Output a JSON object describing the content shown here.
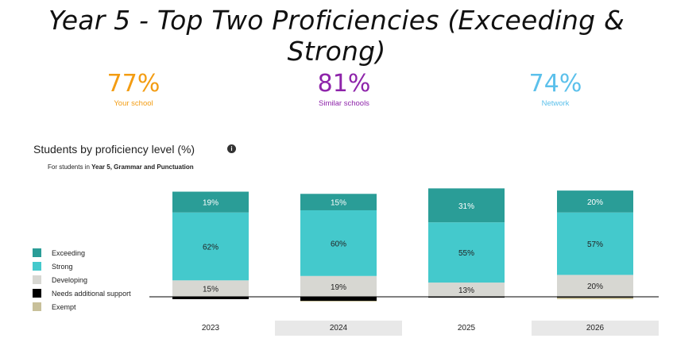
{
  "title": "Year 5 - Top Two Proficiencies (Exceeding & Strong)",
  "stats": [
    {
      "value": "77%",
      "label": "Your school",
      "color": "#f39c12"
    },
    {
      "value": "81%",
      "label": "Similar schools",
      "color": "#8e24aa"
    },
    {
      "value": "74%",
      "label": "Network",
      "color": "#5bc0eb"
    }
  ],
  "section": {
    "heading": "Students by proficiency level (%)",
    "info_icon": "info-icon",
    "caption_prefix": "For students in ",
    "caption_bold": "Year 5, Grammar and Punctuation"
  },
  "legend": [
    {
      "label": "Exceeding",
      "color": "#2a9d97"
    },
    {
      "label": "Strong",
      "color": "#44c9cc"
    },
    {
      "label": "Developing",
      "color": "#d7d7d2"
    },
    {
      "label": "Needs additional support",
      "color": "#000000"
    },
    {
      "label": "Exempt",
      "color": "#c8c09a"
    }
  ],
  "chart_data": {
    "type": "bar",
    "stacked": true,
    "categories": [
      "2023",
      "2024",
      "2025",
      "2026"
    ],
    "series": [
      {
        "name": "Exceeding",
        "values": [
          19,
          15,
          31,
          20
        ],
        "color": "#2a9d97"
      },
      {
        "name": "Strong",
        "values": [
          62,
          60,
          55,
          57
        ],
        "color": "#44c9cc"
      },
      {
        "name": "Developing",
        "values": [
          15,
          19,
          13,
          20
        ],
        "color": "#d7d7d2"
      },
      {
        "name": "Needs additional support",
        "values": [
          3,
          5,
          1,
          1
        ],
        "color": "#000000"
      },
      {
        "name": "Exempt",
        "values": [
          0,
          1,
          0,
          2
        ],
        "color": "#c8c09a"
      }
    ],
    "labels_shown_for": [
      "Exceeding",
      "Strong",
      "Developing"
    ],
    "legend": "left",
    "grid": false
  }
}
